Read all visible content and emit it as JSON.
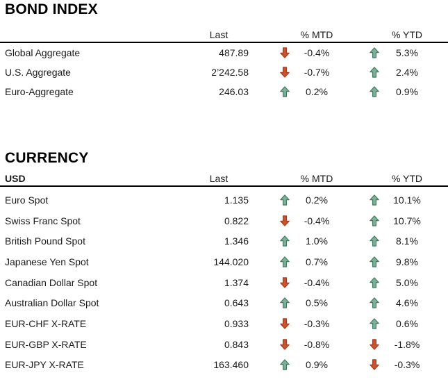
{
  "colors": {
    "up_fill": "#7FAF98",
    "up_stroke": "#3E7B61",
    "down_fill": "#C85430",
    "down_stroke": "#A13E23",
    "text": "#1a1a1a",
    "rule": "#000000"
  },
  "icons": {
    "up": "up-arrow-icon",
    "down": "down-arrow-icon"
  },
  "tables": [
    {
      "title": "BOND INDEX",
      "label_header": "",
      "columns": {
        "last": "Last",
        "mtd": "% MTD",
        "ytd": "% YTD"
      },
      "rows": [
        {
          "label": "Global Aggregate",
          "last": "487.89",
          "mtd": "-0.4%",
          "mtd_dir": "down",
          "ytd": "5.3%",
          "ytd_dir": "up"
        },
        {
          "label": "U.S. Aggregate",
          "last": "2’242.58",
          "mtd": "-0.7%",
          "mtd_dir": "down",
          "ytd": "2.4%",
          "ytd_dir": "up"
        },
        {
          "label": "Euro-Aggregate",
          "last": "246.03",
          "mtd": "0.2%",
          "mtd_dir": "up",
          "ytd": "0.9%",
          "ytd_dir": "up"
        }
      ]
    },
    {
      "title": "CURRENCY",
      "label_header": "USD",
      "columns": {
        "last": "Last",
        "mtd": "% MTD",
        "ytd": "% YTD"
      },
      "rows": [
        {
          "label": "Euro Spot",
          "last": "1.135",
          "mtd": "0.2%",
          "mtd_dir": "up",
          "ytd": "10.1%",
          "ytd_dir": "up"
        },
        {
          "label": "Swiss Franc Spot",
          "last": "0.822",
          "mtd": "-0.4%",
          "mtd_dir": "down",
          "ytd": "10.7%",
          "ytd_dir": "up"
        },
        {
          "label": "British Pound Spot",
          "last": "1.346",
          "mtd": "1.0%",
          "mtd_dir": "up",
          "ytd": "8.1%",
          "ytd_dir": "up"
        },
        {
          "label": "Japanese Yen Spot",
          "last": "144.020",
          "mtd": "0.7%",
          "mtd_dir": "up",
          "ytd": "9.8%",
          "ytd_dir": "up"
        },
        {
          "label": "Canadian Dollar Spot",
          "last": "1.374",
          "mtd": "-0.4%",
          "mtd_dir": "down",
          "ytd": "5.0%",
          "ytd_dir": "up"
        },
        {
          "label": "Australian Dollar Spot",
          "last": "0.643",
          "mtd": "0.5%",
          "mtd_dir": "up",
          "ytd": "4.6%",
          "ytd_dir": "up"
        },
        {
          "label": "EUR-CHF X-RATE",
          "last": "0.933",
          "mtd": "-0.3%",
          "mtd_dir": "down",
          "ytd": "0.6%",
          "ytd_dir": "up"
        },
        {
          "label": "EUR-GBP X-RATE",
          "last": "0.843",
          "mtd": "-0.8%",
          "mtd_dir": "down",
          "ytd": "-1.8%",
          "ytd_dir": "down"
        },
        {
          "label": "EUR-JPY X-RATE",
          "last": "163.460",
          "mtd": "0.9%",
          "mtd_dir": "up",
          "ytd": "-0.3%",
          "ytd_dir": "down"
        }
      ]
    }
  ]
}
